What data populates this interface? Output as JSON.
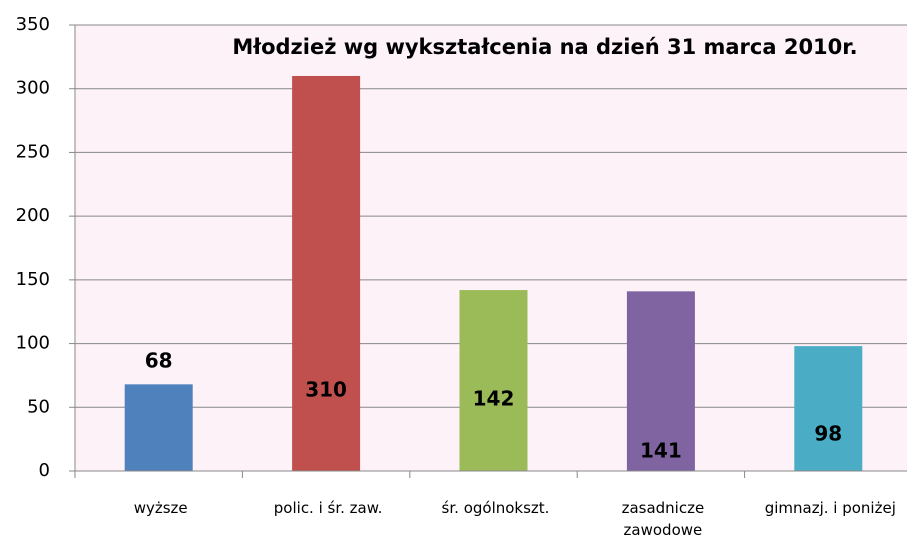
{
  "chart_data": {
    "type": "bar",
    "title": "Młodzież wg wykształcenia na dzień 31 marca 2010r.",
    "categories": [
      "wyższe",
      "polic. i śr. zaw.",
      "śr. ogólnokszt.",
      "zasadnicze zawodowe",
      "gimnazj. i poniżej"
    ],
    "values": [
      68,
      310,
      142,
      141,
      98
    ],
    "colors": [
      "#4f81bd",
      "#c0504d",
      "#9bbb59",
      "#8064a2",
      "#4bacc6"
    ],
    "ylim": [
      0,
      350
    ],
    "yticks": [
      0,
      50,
      100,
      150,
      200,
      250,
      300,
      350
    ],
    "grid": true
  }
}
